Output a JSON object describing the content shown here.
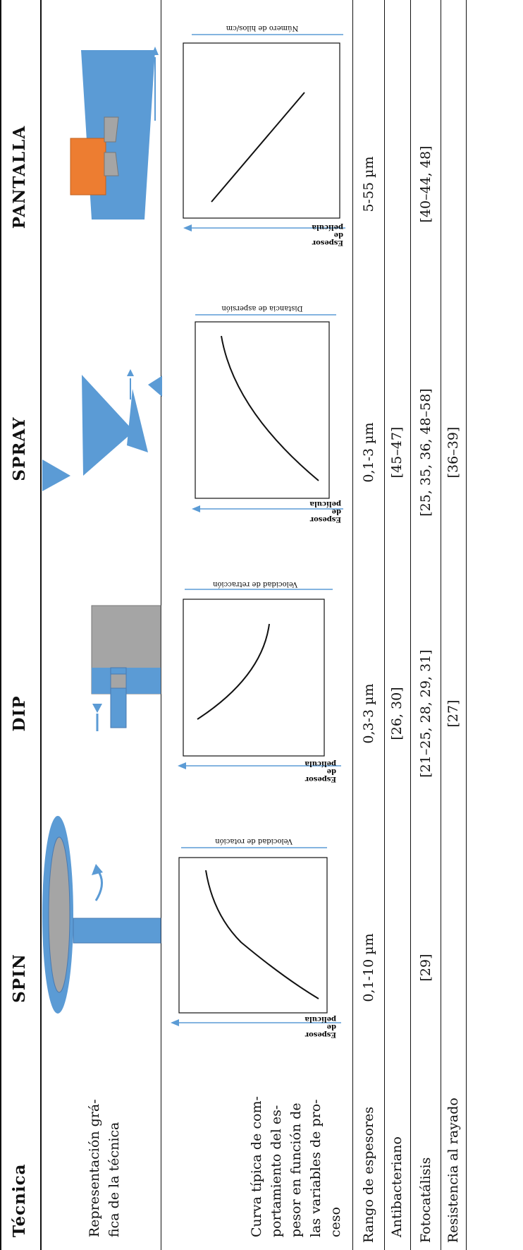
{
  "table": {
    "header": {
      "technique_label": "Técnica",
      "columns": [
        "SPIN",
        "DIP",
        "SPRAY",
        "PANTALLA"
      ]
    },
    "rows": {
      "representation": {
        "label": "Representación grá-\nfica de la técnica"
      },
      "curve": {
        "label": "Curva típica de com-\nportamiento del es-\npesor en función de\nlas variables de pro-\nceso",
        "y_axis_label": [
          "Espesor",
          "de",
          "película"
        ],
        "x_axis_labels": [
          "Velocidad de rotación",
          "Velocidad de retracción",
          "Distancia de aspersión",
          "Número de hilos/cm"
        ]
      },
      "range": {
        "label": "Rango de espesores",
        "values": [
          "0,1-10 µm",
          "0,3-3 µm",
          "0,1-3 µm",
          "5-55 µm"
        ]
      },
      "antibacterial": {
        "label": "Antibacteriano",
        "values": [
          "",
          "[26, 30]",
          "[45–47]",
          ""
        ]
      },
      "photocatalysis": {
        "label": "Fotocatálisis",
        "values": [
          "[29]",
          "[21–25, 28, 29, 31]",
          "[25, 35, 36, 48–58]",
          "[40–44, 48]"
        ]
      },
      "scratch": {
        "label": "Resistencia al rayado",
        "values": [
          "",
          "[27]",
          "[36–39]",
          ""
        ]
      }
    }
  },
  "colors": {
    "blue": "#5b9bd5",
    "gray": "#a5a5a5",
    "orange": "#ed7d31",
    "arrow": "#5b9bd5"
  }
}
